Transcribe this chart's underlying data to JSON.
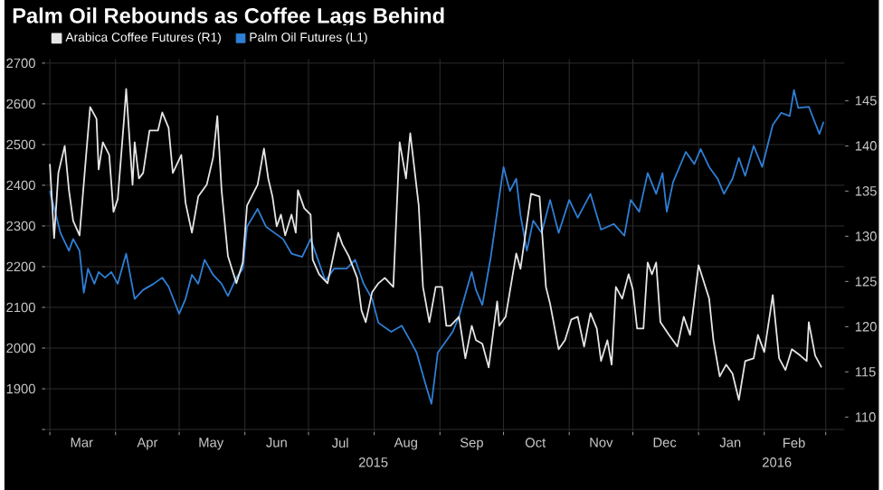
{
  "chart_data": {
    "type": "line",
    "title": "Palm Oil Rebounds as Coffee Lags Behind",
    "xlim": [
      "2015-02-27",
      "2016-03-10"
    ],
    "xticks": [
      {
        "value": "2015-03-01",
        "label": null
      },
      {
        "value": "2015-04-01",
        "label": null
      },
      {
        "value": "2015-05-01",
        "label": null
      },
      {
        "value": "2015-06-01",
        "label": null
      },
      {
        "value": "2015-07-01",
        "label": null
      },
      {
        "value": "2015-08-01",
        "label": null
      },
      {
        "value": "2015-09-01",
        "label": null
      },
      {
        "value": "2015-10-01",
        "label": null
      },
      {
        "value": "2015-11-01",
        "label": null
      },
      {
        "value": "2015-12-01",
        "label": null
      },
      {
        "value": "2016-01-01",
        "label": null
      },
      {
        "value": "2016-02-01",
        "label": null
      },
      {
        "value": "2016-03-01",
        "label": null
      },
      {
        "value": "2015-03-16",
        "label": "Mar"
      },
      {
        "value": "2015-04-16",
        "label": "Apr"
      },
      {
        "value": "2015-05-16",
        "label": "May"
      },
      {
        "value": "2015-06-16",
        "label": "Jun"
      },
      {
        "value": "2015-07-16",
        "label": "Jul"
      },
      {
        "value": "2015-08-16",
        "label": "Aug"
      },
      {
        "value": "2015-09-16",
        "label": "Sep"
      },
      {
        "value": "2015-10-16",
        "label": "Oct"
      },
      {
        "value": "2015-11-16",
        "label": "Nov"
      },
      {
        "value": "2015-12-16",
        "label": "Dec"
      },
      {
        "value": "2016-01-16",
        "label": "Jan"
      },
      {
        "value": "2016-02-15",
        "label": "Feb"
      }
    ],
    "ylim": [
      1795,
      2710
    ],
    "yticks": [
      {
        "value": 1800,
        "label": null
      },
      1900,
      2000,
      2100,
      2200,
      2300,
      2400,
      2500,
      2600,
      2700
    ],
    "y2lim": [
      108.4,
      149.6
    ],
    "y2ticks": [
      110,
      115,
      120,
      125,
      130,
      135,
      140,
      145
    ],
    "grid": true,
    "legend": "top left",
    "annotations": [
      "2015",
      "2016"
    ],
    "series": [
      {
        "name": "Arabica Coffee Futures (R1)",
        "color": "#e6e6e6",
        "axis": "y2",
        "x": [
          "2015-03-01",
          "2015-03-03",
          "2015-03-05",
          "2015-03-08",
          "2015-03-10",
          "2015-03-12",
          "2015-03-15",
          "2015-03-18",
          "2015-03-20",
          "2015-03-23",
          "2015-03-24",
          "2015-03-26",
          "2015-03-29",
          "2015-03-31",
          "2015-04-02",
          "2015-04-05",
          "2015-04-06",
          "2015-04-09",
          "2015-04-10",
          "2015-04-12",
          "2015-04-14",
          "2015-04-17",
          "2015-04-21",
          "2015-04-23",
          "2015-04-26",
          "2015-04-28",
          "2015-05-02",
          "2015-05-04",
          "2015-05-07",
          "2015-05-10",
          "2015-05-14",
          "2015-05-17",
          "2015-05-19",
          "2015-05-21",
          "2015-05-24",
          "2015-05-28",
          "2015-05-31",
          "2015-06-02",
          "2015-06-07",
          "2015-06-10",
          "2015-06-12",
          "2015-06-14",
          "2015-06-16",
          "2015-06-18",
          "2015-06-20",
          "2015-06-23",
          "2015-06-25",
          "2015-06-26",
          "2015-06-29",
          "2015-07-02",
          "2015-07-03",
          "2015-07-06",
          "2015-07-10",
          "2015-07-15",
          "2015-07-17",
          "2015-07-20",
          "2015-07-24",
          "2015-07-26",
          "2015-07-28",
          "2015-07-31",
          "2015-08-03",
          "2015-08-06",
          "2015-08-10",
          "2015-08-13",
          "2015-08-16",
          "2015-08-18",
          "2015-08-22",
          "2015-08-24",
          "2015-08-27",
          "2015-08-30",
          "2015-09-02",
          "2015-09-04",
          "2015-09-06",
          "2015-09-10",
          "2015-09-13",
          "2015-09-16",
          "2015-09-18",
          "2015-09-21",
          "2015-09-24",
          "2015-09-28",
          "2015-09-29",
          "2015-10-02",
          "2015-10-07",
          "2015-10-09",
          "2015-10-14",
          "2015-10-18",
          "2015-10-21",
          "2015-10-23",
          "2015-10-27",
          "2015-10-30",
          "2015-11-02",
          "2015-11-05",
          "2015-11-08",
          "2015-11-11",
          "2015-11-14",
          "2015-11-16",
          "2015-11-19",
          "2015-11-21",
          "2015-11-23",
          "2015-11-26",
          "2015-11-29",
          "2015-12-01",
          "2015-12-03",
          "2015-12-06",
          "2015-12-08",
          "2015-12-10",
          "2015-12-12",
          "2015-12-14",
          "2015-12-18",
          "2015-12-22",
          "2015-12-25",
          "2015-12-28",
          "2016-01-01",
          "2016-01-06",
          "2016-01-08",
          "2016-01-11",
          "2016-01-14",
          "2016-01-17",
          "2016-01-20",
          "2016-01-23",
          "2016-01-27",
          "2016-01-29",
          "2016-02-01",
          "2016-02-05",
          "2016-02-08",
          "2016-02-11",
          "2016-02-14",
          "2016-02-18",
          "2016-02-21",
          "2016-02-22",
          "2016-02-25",
          "2016-02-28"
        ],
        "values": [
          138.0,
          129.8,
          137.0,
          140.0,
          135.1,
          131.7,
          130.1,
          138.7,
          144.3,
          143.0,
          137.4,
          140.4,
          139.0,
          132.7,
          134.1,
          143.0,
          146.3,
          135.7,
          140.4,
          136.4,
          137.0,
          141.7,
          141.7,
          143.7,
          142.0,
          137.0,
          139.0,
          133.7,
          130.4,
          134.4,
          135.7,
          138.7,
          143.3,
          135.1,
          127.8,
          124.8,
          127.1,
          133.4,
          135.7,
          139.7,
          136.4,
          134.4,
          131.1,
          132.4,
          130.1,
          132.4,
          130.4,
          135.1,
          133.1,
          132.4,
          127.4,
          125.8,
          124.8,
          130.4,
          129.1,
          127.8,
          125.4,
          121.8,
          120.5,
          123.8,
          124.8,
          125.4,
          124.4,
          140.4,
          136.4,
          141.4,
          133.4,
          124.4,
          120.5,
          124.4,
          124.4,
          120.1,
          120.1,
          121.1,
          116.5,
          120.1,
          118.5,
          118.1,
          115.5,
          122.8,
          120.1,
          121.1,
          128.1,
          126.4,
          134.7,
          134.4,
          124.4,
          122.5,
          117.5,
          118.5,
          120.8,
          121.1,
          117.8,
          121.5,
          119.8,
          116.2,
          118.5,
          115.8,
          124.4,
          123.1,
          125.8,
          124.1,
          119.8,
          119.8,
          127.1,
          125.8,
          127.1,
          120.5,
          119.1,
          117.8,
          121.1,
          119.1,
          126.8,
          123.1,
          118.5,
          114.5,
          115.8,
          114.8,
          111.9,
          116.2,
          116.5,
          119.1,
          117.2,
          123.5,
          116.5,
          115.2,
          117.5,
          116.8,
          116.2,
          120.5,
          116.8,
          115.5
        ]
      },
      {
        "name": "Palm Oil Futures (L1)",
        "color": "#2f7fd6",
        "x": [
          "2015-03-01",
          "2015-03-06",
          "2015-03-10",
          "2015-03-12",
          "2015-03-15",
          "2015-03-17",
          "2015-03-19",
          "2015-03-22",
          "2015-03-24",
          "2015-03-27",
          "2015-03-30",
          "2015-04-02",
          "2015-04-06",
          "2015-04-10",
          "2015-04-14",
          "2015-04-19",
          "2015-04-23",
          "2015-04-26",
          "2015-05-01",
          "2015-05-04",
          "2015-05-07",
          "2015-05-10",
          "2015-05-13",
          "2015-05-17",
          "2015-05-21",
          "2015-05-24",
          "2015-05-28",
          "2015-05-31",
          "2015-06-02",
          "2015-06-07",
          "2015-06-11",
          "2015-06-15",
          "2015-06-19",
          "2015-06-23",
          "2015-06-28",
          "2015-07-02",
          "2015-07-05",
          "2015-07-09",
          "2015-07-13",
          "2015-07-19",
          "2015-07-23",
          "2015-07-27",
          "2015-07-31",
          "2015-08-03",
          "2015-08-09",
          "2015-08-14",
          "2015-08-18",
          "2015-08-21",
          "2015-08-25",
          "2015-08-28",
          "2015-08-31",
          "2015-09-04",
          "2015-09-07",
          "2015-09-10",
          "2015-09-16",
          "2015-09-18",
          "2015-09-21",
          "2015-09-25",
          "2015-10-01",
          "2015-10-04",
          "2015-10-07",
          "2015-10-09",
          "2015-10-12",
          "2015-10-15",
          "2015-10-19",
          "2015-10-23",
          "2015-10-27",
          "2015-11-01",
          "2015-11-05",
          "2015-11-11",
          "2015-11-16",
          "2015-11-22",
          "2015-11-27",
          "2015-11-30",
          "2015-12-04",
          "2015-12-08",
          "2015-12-12",
          "2015-12-15",
          "2015-12-17",
          "2015-12-20",
          "2015-12-26",
          "2015-12-30",
          "2016-01-02",
          "2016-01-06",
          "2016-01-10",
          "2016-01-13",
          "2016-01-17",
          "2016-01-20",
          "2016-01-23",
          "2016-01-27",
          "2016-01-31",
          "2016-02-05",
          "2016-02-09",
          "2016-02-13",
          "2016-02-15",
          "2016-02-17",
          "2016-02-22",
          "2016-02-27",
          "2016-02-29"
        ],
        "values": [
          2386,
          2283,
          2239,
          2268,
          2239,
          2136,
          2195,
          2158,
          2187,
          2173,
          2187,
          2158,
          2232,
          2121,
          2143,
          2158,
          2173,
          2151,
          2084,
          2121,
          2180,
          2158,
          2217,
          2180,
          2158,
          2128,
          2173,
          2195,
          2298,
          2342,
          2298,
          2283,
          2268,
          2232,
          2224,
          2268,
          2224,
          2165,
          2195,
          2195,
          2217,
          2158,
          2121,
          2062,
          2040,
          2055,
          2018,
          1989,
          1915,
          1863,
          1989,
          2018,
          2040,
          2077,
          2187,
          2143,
          2106,
          2224,
          2445,
          2386,
          2416,
          2327,
          2239,
          2313,
          2283,
          2364,
          2283,
          2364,
          2320,
          2379,
          2291,
          2305,
          2276,
          2364,
          2335,
          2430,
          2379,
          2430,
          2335,
          2408,
          2482,
          2452,
          2489,
          2445,
          2416,
          2379,
          2416,
          2467,
          2423,
          2497,
          2445,
          2548,
          2578,
          2570,
          2634,
          2590,
          2593,
          2526,
          2556
        ]
      }
    ]
  }
}
